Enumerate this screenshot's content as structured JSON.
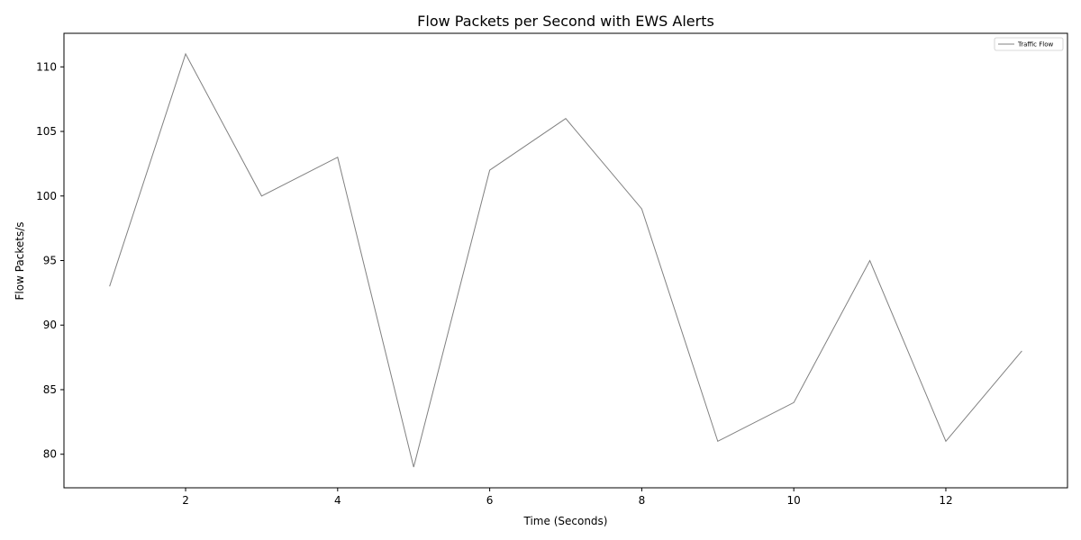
{
  "chart_data": {
    "type": "line",
    "title": "Flow Packets per Second with EWS Alerts",
    "xlabel": "Time (Seconds)",
    "ylabel": "Flow Packets/s",
    "xlim": [
      0.4,
      13.6
    ],
    "ylim": [
      77.4,
      112.6
    ],
    "xticks": [
      2,
      4,
      6,
      8,
      10,
      12
    ],
    "yticks": [
      80,
      85,
      90,
      95,
      100,
      105,
      110
    ],
    "grid": false,
    "legend_position": "top-right",
    "series": [
      {
        "name": "Traffic Flow",
        "color": "#808080",
        "x": [
          1,
          2,
          3,
          4,
          5,
          6,
          7,
          8,
          9,
          10,
          11,
          12,
          13
        ],
        "y": [
          93,
          111,
          100,
          103,
          79,
          102,
          106,
          99,
          81,
          84,
          95,
          81,
          88
        ]
      }
    ]
  }
}
